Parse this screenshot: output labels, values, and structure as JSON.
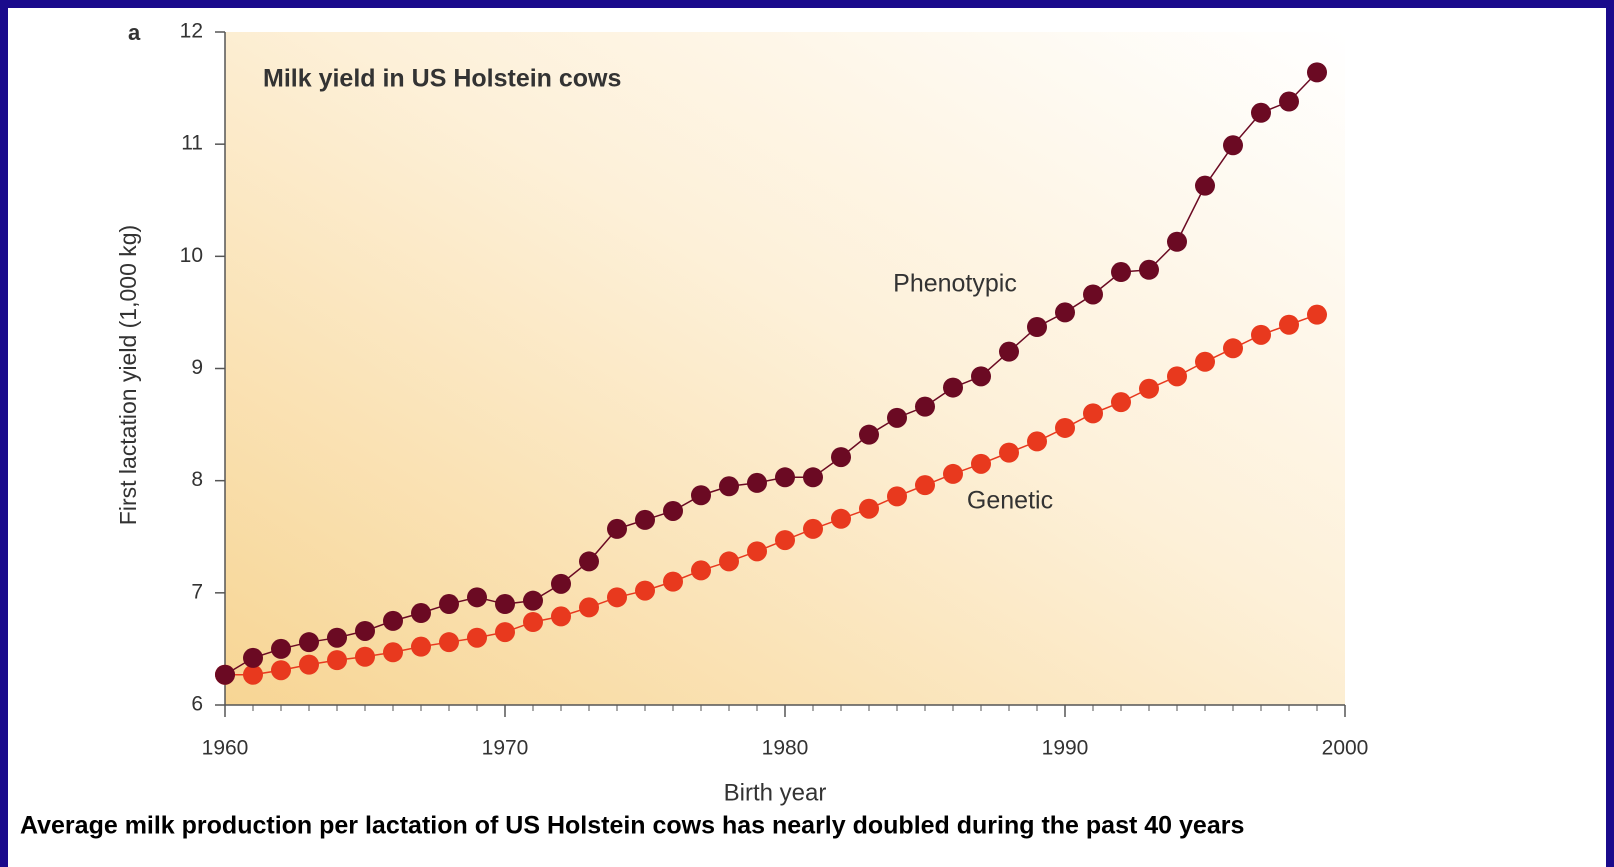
{
  "chart_data": {
    "type": "scatter",
    "panel_label": "a",
    "title": "Milk yield in US Holstein cows",
    "x_label": "Birth year",
    "y_label": "First lactation yield (1,000 kg)",
    "caption": "Average milk production per lactation of US Holstein cows has nearly doubled during the past 40 years",
    "x": [
      1960,
      1961,
      1962,
      1963,
      1964,
      1965,
      1966,
      1967,
      1968,
      1969,
      1970,
      1971,
      1972,
      1973,
      1974,
      1975,
      1976,
      1977,
      1978,
      1979,
      1980,
      1981,
      1982,
      1983,
      1984,
      1985,
      1986,
      1987,
      1988,
      1989,
      1990,
      1991,
      1992,
      1993,
      1994,
      1995,
      1996,
      1997,
      1998,
      1999
    ],
    "series": [
      {
        "name": "Phenotypic",
        "color": "#6b0a23",
        "values": [
          6.27,
          6.42,
          6.5,
          6.56,
          6.6,
          6.66,
          6.75,
          6.82,
          6.9,
          6.96,
          6.9,
          6.93,
          7.08,
          7.28,
          7.57,
          7.65,
          7.73,
          7.87,
          7.95,
          7.98,
          8.03,
          8.03,
          8.21,
          8.41,
          8.56,
          8.66,
          8.83,
          8.93,
          9.15,
          9.37,
          9.5,
          9.66,
          9.86,
          9.88,
          10.13,
          10.63,
          10.99,
          11.28,
          11.38,
          11.64
        ]
      },
      {
        "name": "Genetic",
        "color": "#e8391e",
        "values": [
          6.27,
          6.27,
          6.31,
          6.36,
          6.4,
          6.43,
          6.47,
          6.52,
          6.56,
          6.6,
          6.65,
          6.74,
          6.79,
          6.87,
          6.96,
          7.02,
          7.1,
          7.2,
          7.28,
          7.37,
          7.47,
          7.57,
          7.66,
          7.75,
          7.86,
          7.96,
          8.06,
          8.15,
          8.25,
          8.35,
          8.47,
          8.6,
          8.7,
          8.82,
          8.93,
          9.06,
          9.18,
          9.3,
          9.39,
          9.48
        ]
      }
    ],
    "xlim": [
      1960,
      2000
    ],
    "xticks": [
      1960,
      1970,
      1980,
      1990,
      2000
    ],
    "ylim": [
      6,
      12
    ],
    "yticks": [
      6,
      7,
      8,
      9,
      10,
      11,
      12
    ]
  }
}
